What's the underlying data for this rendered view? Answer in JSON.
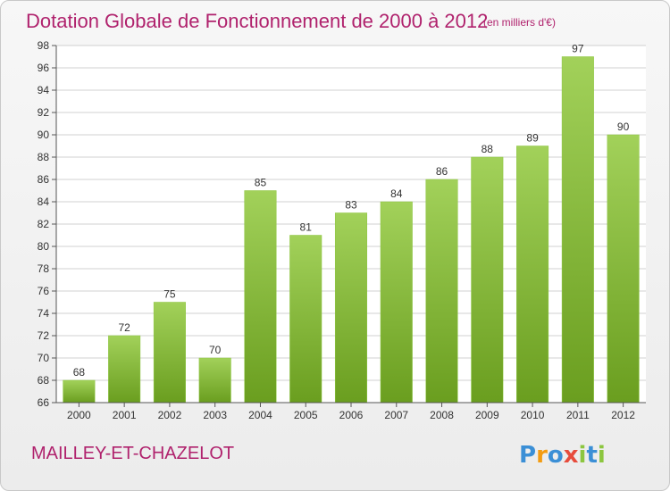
{
  "chart_data": {
    "type": "bar",
    "title": "Dotation Globale de Fonctionnement de 2000 à 2012",
    "subtitle": "(en milliers d'€)",
    "categories": [
      "2000",
      "2001",
      "2002",
      "2003",
      "2004",
      "2005",
      "2006",
      "2007",
      "2008",
      "2009",
      "2010",
      "2011",
      "2012"
    ],
    "values": [
      68,
      72,
      75,
      70,
      85,
      81,
      83,
      84,
      86,
      88,
      89,
      97,
      90
    ],
    "ylim": [
      66,
      98
    ],
    "yticks": [
      "66",
      "68",
      "70",
      "72",
      "74",
      "76",
      "78",
      "80",
      "82",
      "84",
      "86",
      "88",
      "90",
      "92",
      "94",
      "96",
      "98"
    ],
    "grid": true,
    "legend": "none",
    "bar_color_top": "#a2d15a",
    "bar_color_bottom": "#6a9e1f"
  },
  "commune_name": "MAILLEY-ET-CHAZELOT",
  "logo": {
    "text": "Proxiti",
    "letters": [
      "P",
      "r",
      "o",
      "x",
      "i",
      "t",
      "i"
    ],
    "colors": [
      "#3b8fd6",
      "#f39c12",
      "#3b8fd6",
      "#e74c3c",
      "#8cc63f",
      "#3b8fd6",
      "#8cc63f"
    ]
  },
  "colors": {
    "title": "#b0226d",
    "grid": "#d0d0d0",
    "axis": "#555555"
  }
}
